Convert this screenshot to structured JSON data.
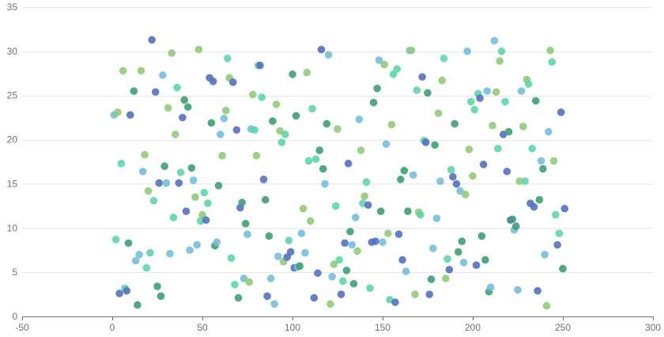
{
  "chart_data": {
    "type": "scatter",
    "title": "",
    "xlabel": "",
    "ylabel": "",
    "xlim": [
      -50,
      300
    ],
    "ylim": [
      0,
      35
    ],
    "x_ticks": [
      -50,
      0,
      50,
      100,
      150,
      200,
      250,
      300
    ],
    "y_ticks": [
      0,
      5,
      10,
      15,
      20,
      25,
      30,
      35
    ],
    "grid": {
      "horizontal": true,
      "vertical": false
    },
    "legend": "none",
    "colors": [
      "#73c0de",
      "#5470c6",
      "#91cc75",
      "#3ba272",
      "#5ad8a6"
    ],
    "points": [
      [
        1,
        22.8
      ],
      [
        3,
        23.1
      ],
      [
        5,
        17.3
      ],
      [
        6,
        27.8
      ],
      [
        2,
        8.7
      ],
      [
        4,
        2.6
      ],
      [
        7,
        3.2
      ],
      [
        8,
        2.9
      ],
      [
        9,
        8.3
      ],
      [
        10,
        22.8
      ],
      [
        12,
        25.5
      ],
      [
        13,
        6.3
      ],
      [
        14,
        1.3
      ],
      [
        15,
        7.0
      ],
      [
        16,
        27.8
      ],
      [
        17,
        16.4
      ],
      [
        18,
        18.3
      ],
      [
        19,
        5.5
      ],
      [
        20,
        14.2
      ],
      [
        21,
        7.2
      ],
      [
        22,
        31.3
      ],
      [
        23,
        13.1
      ],
      [
        24,
        25.4
      ],
      [
        25,
        3.4
      ],
      [
        26,
        15.1
      ],
      [
        27,
        2.3
      ],
      [
        28,
        27.3
      ],
      [
        29,
        17.0
      ],
      [
        30,
        15.1
      ],
      [
        31,
        23.6
      ],
      [
        32,
        7.1
      ],
      [
        33,
        29.8
      ],
      [
        34,
        11.2
      ],
      [
        35,
        20.6
      ],
      [
        36,
        25.9
      ],
      [
        37,
        15.1
      ],
      [
        38,
        16.3
      ],
      [
        39,
        22.5
      ],
      [
        40,
        24.5
      ],
      [
        41,
        11.9
      ],
      [
        42,
        23.7
      ],
      [
        43,
        7.5
      ],
      [
        44,
        16.8
      ],
      [
        45,
        15.4
      ],
      [
        46,
        13.5
      ],
      [
        47,
        8.1
      ],
      [
        48,
        30.2
      ],
      [
        49,
        10.8
      ],
      [
        50,
        11.5
      ],
      [
        51,
        14.0
      ],
      [
        52,
        10.9
      ],
      [
        53,
        12.8
      ],
      [
        54,
        27.0
      ],
      [
        55,
        21.9
      ],
      [
        56,
        26.6
      ],
      [
        57,
        8.0
      ],
      [
        58,
        8.4
      ],
      [
        59,
        14.8
      ],
      [
        60,
        20.6
      ],
      [
        61,
        18.2
      ],
      [
        62,
        22.4
      ],
      [
        63,
        23.3
      ],
      [
        64,
        29.2
      ],
      [
        65,
        27.0
      ],
      [
        66,
        6.6
      ],
      [
        67,
        26.5
      ],
      [
        68,
        3.6
      ],
      [
        69,
        21.1
      ],
      [
        70,
        2.1
      ],
      [
        71,
        12.3
      ],
      [
        72,
        12.9
      ],
      [
        73,
        4.3
      ],
      [
        74,
        10.5
      ],
      [
        75,
        9.3
      ],
      [
        76,
        3.9
      ],
      [
        77,
        21.2
      ],
      [
        78,
        25.1
      ],
      [
        79,
        21.1
      ],
      [
        80,
        18.2
      ],
      [
        81,
        28.4
      ],
      [
        82,
        28.4
      ],
      [
        83,
        24.8
      ],
      [
        84,
        15.5
      ],
      [
        85,
        13.2
      ],
      [
        86,
        2.3
      ],
      [
        87,
        9.1
      ],
      [
        88,
        4.3
      ],
      [
        89,
        22.1
      ],
      [
        90,
        1.4
      ],
      [
        91,
        24.0
      ],
      [
        92,
        6.8
      ],
      [
        93,
        21.0
      ],
      [
        94,
        19.7
      ],
      [
        95,
        6.2
      ],
      [
        96,
        20.6
      ],
      [
        97,
        6.7
      ],
      [
        98,
        8.6
      ],
      [
        99,
        7.3
      ],
      [
        100,
        27.4
      ],
      [
        101,
        5.5
      ],
      [
        102,
        22.7
      ],
      [
        103,
        5.6
      ],
      [
        104,
        5.7
      ],
      [
        105,
        9.4
      ],
      [
        106,
        12.2
      ],
      [
        107,
        7.2
      ],
      [
        108,
        27.6
      ],
      [
        109,
        17.6
      ],
      [
        110,
        10.8
      ],
      [
        111,
        23.5
      ],
      [
        112,
        2.1
      ],
      [
        113,
        17.8
      ],
      [
        114,
        4.9
      ],
      [
        115,
        18.8
      ],
      [
        116,
        30.2
      ],
      [
        117,
        16.7
      ],
      [
        118,
        15.0
      ],
      [
        119,
        21.8
      ],
      [
        120,
        29.6
      ],
      [
        121,
        1.4
      ],
      [
        122,
        4.5
      ],
      [
        123,
        5.9
      ],
      [
        124,
        12.5
      ],
      [
        125,
        21.2
      ],
      [
        126,
        6.4
      ],
      [
        127,
        2.5
      ],
      [
        128,
        4.0
      ],
      [
        129,
        8.3
      ],
      [
        130,
        5.2
      ],
      [
        131,
        17.3
      ],
      [
        132,
        9.6
      ],
      [
        133,
        8.1
      ],
      [
        134,
        3.7
      ],
      [
        135,
        11.2
      ],
      [
        136,
        7.4
      ],
      [
        137,
        22.3
      ],
      [
        138,
        18.8
      ],
      [
        139,
        12.8
      ],
      [
        140,
        13.6
      ],
      [
        141,
        15.2
      ],
      [
        142,
        12.6
      ],
      [
        143,
        3.2
      ],
      [
        144,
        8.4
      ],
      [
        145,
        24.2
      ],
      [
        146,
        8.5
      ],
      [
        147,
        25.8
      ],
      [
        148,
        29.0
      ],
      [
        149,
        11.9
      ],
      [
        150,
        8.4
      ],
      [
        151,
        28.5
      ],
      [
        152,
        19.5
      ],
      [
        153,
        9.4
      ],
      [
        154,
        1.9
      ],
      [
        155,
        21.7
      ],
      [
        156,
        27.4
      ],
      [
        157,
        1.6
      ],
      [
        158,
        28.0
      ],
      [
        159,
        9.3
      ],
      [
        160,
        15.5
      ],
      [
        161,
        6.4
      ],
      [
        162,
        16.5
      ],
      [
        163,
        5.1
      ],
      [
        164,
        11.9
      ],
      [
        165,
        30.1
      ],
      [
        166,
        30.1
      ],
      [
        167,
        16.0
      ],
      [
        168,
        2.5
      ],
      [
        169,
        25.6
      ],
      [
        170,
        11.8
      ],
      [
        171,
        11.5
      ],
      [
        172,
        27.1
      ],
      [
        173,
        19.9
      ],
      [
        174,
        19.7
      ],
      [
        175,
        25.3
      ],
      [
        176,
        2.5
      ],
      [
        177,
        4.2
      ],
      [
        178,
        7.7
      ],
      [
        179,
        19.4
      ],
      [
        180,
        11.1
      ],
      [
        181,
        23.0
      ],
      [
        182,
        15.3
      ],
      [
        183,
        26.7
      ],
      [
        184,
        29.2
      ],
      [
        185,
        4.3
      ],
      [
        186,
        6.5
      ],
      [
        187,
        5.3
      ],
      [
        188,
        16.6
      ],
      [
        189,
        15.8
      ],
      [
        190,
        21.8
      ],
      [
        191,
        15.0
      ],
      [
        192,
        7.3
      ],
      [
        193,
        14.2
      ],
      [
        194,
        8.5
      ],
      [
        195,
        6.1
      ],
      [
        196,
        13.8
      ],
      [
        197,
        30.0
      ],
      [
        198,
        18.9
      ],
      [
        199,
        24.3
      ],
      [
        200,
        15.9
      ],
      [
        201,
        23.4
      ],
      [
        202,
        5.8
      ],
      [
        203,
        25.2
      ],
      [
        204,
        24.7
      ],
      [
        205,
        9.1
      ],
      [
        206,
        17.2
      ],
      [
        207,
        6.4
      ],
      [
        208,
        25.5
      ],
      [
        209,
        2.8
      ],
      [
        210,
        3.3
      ],
      [
        211,
        21.6
      ],
      [
        212,
        31.2
      ],
      [
        213,
        25.4
      ],
      [
        214,
        19.0
      ],
      [
        215,
        28.9
      ],
      [
        216,
        30.0
      ],
      [
        217,
        20.6
      ],
      [
        218,
        24.3
      ],
      [
        219,
        16.4
      ],
      [
        220,
        20.9
      ],
      [
        221,
        10.9
      ],
      [
        222,
        11.0
      ],
      [
        223,
        9.8
      ],
      [
        224,
        10.2
      ],
      [
        225,
        3.0
      ],
      [
        226,
        15.3
      ],
      [
        227,
        25.5
      ],
      [
        228,
        21.5
      ],
      [
        229,
        15.3
      ],
      [
        230,
        26.8
      ],
      [
        231,
        26.3
      ],
      [
        232,
        12.8
      ],
      [
        233,
        19.0
      ],
      [
        234,
        12.4
      ],
      [
        235,
        24.4
      ],
      [
        236,
        2.9
      ],
      [
        237,
        13.2
      ],
      [
        238,
        17.6
      ],
      [
        239,
        16.7
      ],
      [
        240,
        7.0
      ],
      [
        241,
        1.2
      ],
      [
        242,
        20.9
      ],
      [
        243,
        30.1
      ],
      [
        244,
        28.8
      ],
      [
        245,
        17.6
      ],
      [
        246,
        11.5
      ],
      [
        247,
        8.1
      ],
      [
        248,
        9.4
      ],
      [
        249,
        23.1
      ],
      [
        250,
        5.4
      ],
      [
        251,
        12.2
      ]
    ]
  }
}
